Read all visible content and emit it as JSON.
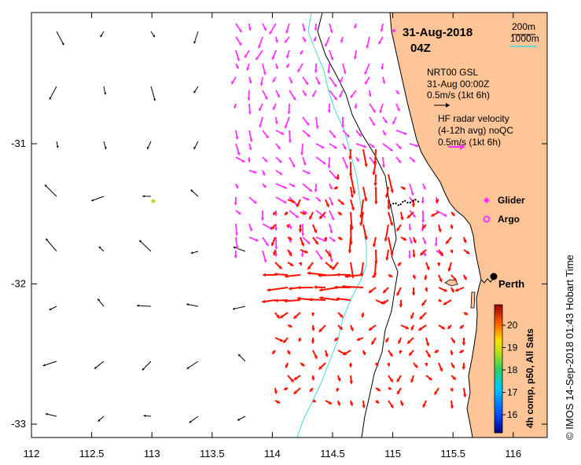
{
  "map": {
    "date_title": "31-Aug-2018",
    "time_title": "04Z",
    "depth_legend": {
      "contour_200": "200m",
      "contour_1000": "1000m",
      "contour_1000_color": "#3ddad8"
    },
    "model_legend": {
      "line1": "NRT00 GSL",
      "line2": "31-Aug 00:00Z",
      "scale_label": "0.5m/s (1kt 6h)"
    },
    "radar_legend": {
      "line1": "HF radar velocity",
      "line2": "(4-12h avg) noQC",
      "scale_label": "0.5m/s (1kt 6h)"
    },
    "platform_legend": {
      "glider_label": "Glider",
      "argo_label": "Argo",
      "marker_color": "#ff33ff"
    },
    "city_label": "Perth",
    "credit": "© IMOS 14-Sep-2018 01:43 Hobart Time",
    "colors": {
      "land": "#fdc597",
      "model_vectors": "#000000",
      "radar_vectors": "#ff33ff",
      "sat_vectors": "#ff1100"
    },
    "colorbar": {
      "label": "4h comp, p50, All Sats",
      "ticks": [
        "20",
        "19",
        "18",
        "17",
        "16"
      ]
    },
    "x_axis": {
      "ticks": [
        "112",
        "112.5",
        "113",
        "113.5",
        "114",
        "114.5",
        "115",
        "115.5",
        "116"
      ]
    },
    "y_axis": {
      "ticks": [
        "-31",
        "-32",
        "-33"
      ]
    }
  }
}
